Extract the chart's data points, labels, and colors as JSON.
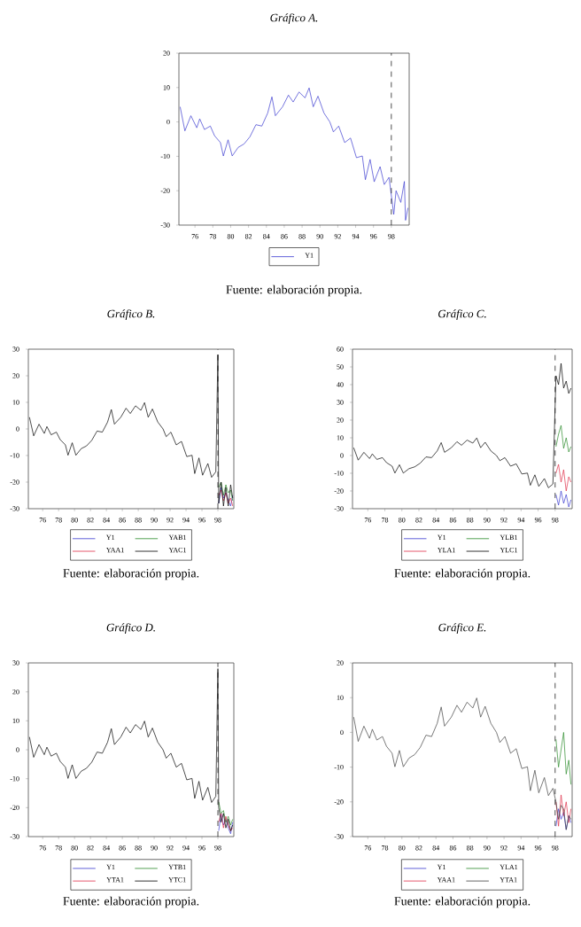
{
  "chart_data": [
    {
      "type": "line",
      "title": "Gráfico A.",
      "annotations": [
        "Fuente: elaboración propia."
      ],
      "xlim": [
        1974.2,
        2000
      ],
      "xticks": [
        {
          "value": 1976,
          "label": "76"
        },
        {
          "value": 1978,
          "label": "78"
        },
        {
          "value": 1980,
          "label": "80"
        },
        {
          "value": 1982,
          "label": "82"
        },
        {
          "value": 1984,
          "label": "84"
        },
        {
          "value": 1986,
          "label": "86"
        },
        {
          "value": 1988,
          "label": "88"
        },
        {
          "value": 1990,
          "label": "90"
        },
        {
          "value": 1992,
          "label": "92"
        },
        {
          "value": 1994,
          "label": "94"
        },
        {
          "value": 1996,
          "label": "96"
        },
        {
          "value": 1998,
          "label": "98"
        }
      ],
      "ylim": [
        -30,
        20
      ],
      "yticks": [
        -30,
        -20,
        -10,
        0,
        10,
        20
      ],
      "legend": "bottom",
      "ref_lines": [
        {
          "axis": "x",
          "value": 1998,
          "line_style": "dashed",
          "color": "#000000"
        }
      ],
      "series": [
        {
          "name": "Y1",
          "color": "#3a3ad0",
          "x": [
            1974.34,
            1974.87,
            1975.54,
            1976.2,
            1976.53,
            1977.06,
            1977.72,
            1978.19,
            1978.85,
            1979.18,
            1979.71,
            1980.17,
            1980.84,
            1981.5,
            1982.16,
            1982.83,
            1983.49,
            1984.15,
            1984.62,
            1985.01,
            1985.81,
            1986.47,
            1987.0,
            1987.66,
            1988.33,
            1988.79,
            1989.25,
            1989.78,
            1990.45,
            1991.11,
            1991.51,
            1992.1,
            1992.77,
            1993.43,
            1994.09,
            1994.75,
            1995.09,
            1995.62,
            1996.08,
            1996.74,
            1997.21,
            1997.74,
            1998.27,
            1998.53,
            1999.06,
            1999.46,
            1999.59,
            1999.86
          ],
          "values": [
            4.4,
            -2.6,
            1.8,
            -1.7,
            0.9,
            -2.2,
            -1.2,
            -4,
            -6,
            -9.9,
            -5.2,
            -9.9,
            -7.4,
            -6.4,
            -4.3,
            -0.8,
            -1.2,
            2.6,
            7.3,
            1.8,
            4.4,
            7.8,
            5.8,
            8.7,
            7,
            9.9,
            4.4,
            7.5,
            2.6,
            0,
            -2.9,
            -1.2,
            -6,
            -4.7,
            -10.4,
            -9.9,
            -16.8,
            -10.9,
            -17.4,
            -13,
            -18.2,
            -16.1,
            -26.9,
            -20,
            -23.4,
            -17.3,
            -28.6,
            -25
          ]
        }
      ]
    },
    {
      "type": "line",
      "title": "Gráfico B.",
      "annotations": [
        "Fuente: elaboración propia."
      ],
      "xlim": [
        1974.2,
        2000
      ],
      "xticks": [
        {
          "value": 1976,
          "label": "76"
        },
        {
          "value": 1978,
          "label": "78"
        },
        {
          "value": 1980,
          "label": "80"
        },
        {
          "value": 1982,
          "label": "82"
        },
        {
          "value": 1984,
          "label": "84"
        },
        {
          "value": 1986,
          "label": "86"
        },
        {
          "value": 1988,
          "label": "88"
        },
        {
          "value": 1990,
          "label": "90"
        },
        {
          "value": 1992,
          "label": "92"
        },
        {
          "value": 1994,
          "label": "94"
        },
        {
          "value": 1996,
          "label": "96"
        },
        {
          "value": 1998,
          "label": "98"
        }
      ],
      "ylim": [
        -30,
        30
      ],
      "yticks": [
        -30,
        -20,
        -10,
        0,
        10,
        20,
        30
      ],
      "legend": "bottom",
      "ref_lines": [
        {
          "axis": "x",
          "value": 1998,
          "line_style": "dashed",
          "color": "#000000"
        }
      ],
      "series": [
        {
          "name": "Y1",
          "color": "#3a3ad0",
          "x": [
            1998.1,
            1998.4,
            1998.7,
            1999.0,
            1999.3,
            1999.6,
            1999.86
          ],
          "values": [
            -28,
            -22,
            -26,
            -24,
            -27,
            -29,
            -25
          ]
        },
        {
          "name": "YAB1",
          "color": "#2a8a2a",
          "x": [
            1998.1,
            1998.4,
            1998.7,
            1999.0,
            1999.3,
            1999.6,
            1999.86
          ],
          "values": [
            -22,
            -20,
            -25,
            -21,
            -24,
            -23,
            -27
          ]
        },
        {
          "name": "YAA1",
          "color": "#e0304a",
          "x": [
            1998.1,
            1998.4,
            1998.7,
            1999.0,
            1999.3,
            1999.6,
            1999.86
          ],
          "values": [
            -25,
            -23,
            -27,
            -24,
            -28,
            -26,
            -29
          ]
        },
        {
          "name": "YAC1",
          "color": "#000000",
          "x": [
            1974.34,
            1974.87,
            1975.54,
            1976.2,
            1976.53,
            1977.06,
            1977.72,
            1978.19,
            1978.85,
            1979.18,
            1979.71,
            1980.17,
            1980.84,
            1981.5,
            1982.16,
            1982.83,
            1983.49,
            1984.15,
            1984.62,
            1985.01,
            1985.81,
            1986.47,
            1987.0,
            1987.66,
            1988.33,
            1988.79,
            1989.25,
            1989.78,
            1990.45,
            1991.11,
            1991.51,
            1992.1,
            1992.77,
            1993.43,
            1994.09,
            1994.75,
            1995.09,
            1995.62,
            1996.08,
            1996.74,
            1997.21,
            1997.74,
            1998.0,
            1998.1,
            1998.4,
            1998.7,
            1999.0,
            1999.3,
            1999.6,
            1999.86
          ],
          "values": [
            4.4,
            -2.6,
            1.8,
            -1.7,
            0.9,
            -2.2,
            -1.2,
            -4,
            -6,
            -9.9,
            -5.2,
            -9.9,
            -7.4,
            -6.4,
            -4.3,
            -0.8,
            -1.2,
            2.6,
            7.3,
            1.8,
            4.4,
            7.8,
            5.8,
            8.7,
            7,
            9.9,
            4.4,
            7.5,
            2.6,
            0,
            -2.9,
            -1.2,
            -6,
            -4.7,
            -10.4,
            -9.9,
            -16.8,
            -10.9,
            -17.4,
            -13,
            -18.2,
            -16.1,
            28,
            -28,
            -20,
            -29,
            -22,
            -29,
            -21,
            -26
          ]
        }
      ]
    },
    {
      "type": "line",
      "title": "Gráfico C.",
      "annotations": [
        "Fuente: elaboración propia."
      ],
      "xlim": [
        1974.2,
        2000
      ],
      "xticks": [
        {
          "value": 1976,
          "label": "76"
        },
        {
          "value": 1978,
          "label": "78"
        },
        {
          "value": 1980,
          "label": "80"
        },
        {
          "value": 1982,
          "label": "82"
        },
        {
          "value": 1984,
          "label": "84"
        },
        {
          "value": 1986,
          "label": "86"
        },
        {
          "value": 1988,
          "label": "88"
        },
        {
          "value": 1990,
          "label": "90"
        },
        {
          "value": 1992,
          "label": "92"
        },
        {
          "value": 1994,
          "label": "94"
        },
        {
          "value": 1996,
          "label": "96"
        },
        {
          "value": 1998,
          "label": "98"
        }
      ],
      "ylim": [
        -30,
        60
      ],
      "yticks": [
        -30,
        -20,
        -10,
        0,
        10,
        20,
        30,
        40,
        50,
        60
      ],
      "legend": "bottom",
      "ref_lines": [
        {
          "axis": "x",
          "value": 1998,
          "line_style": "dashed",
          "color": "#000000"
        }
      ],
      "series": [
        {
          "name": "Y1",
          "color": "#3a3ad0",
          "x": [
            1998.1,
            1998.4,
            1998.7,
            1999.0,
            1999.3,
            1999.6,
            1999.86
          ],
          "values": [
            -22,
            -28,
            -20,
            -27,
            -22,
            -29,
            -25
          ]
        },
        {
          "name": "YLB1",
          "color": "#2a8a2a",
          "x": [
            1998.1,
            1998.4,
            1998.7,
            1999.0,
            1999.3,
            1999.6,
            1999.86
          ],
          "values": [
            5,
            12,
            17,
            4,
            10,
            2,
            5
          ]
        },
        {
          "name": "YLA1",
          "color": "#e0304a",
          "x": [
            1998.1,
            1998.4,
            1998.7,
            1999.0,
            1999.3,
            1999.6,
            1999.86
          ],
          "values": [
            -10,
            -5,
            -15,
            -8,
            -20,
            -12,
            -15
          ]
        },
        {
          "name": "YLC1",
          "color": "#000000",
          "x": [
            1974.34,
            1974.87,
            1975.54,
            1976.2,
            1976.53,
            1977.06,
            1977.72,
            1978.19,
            1978.85,
            1979.18,
            1979.71,
            1980.17,
            1980.84,
            1981.5,
            1982.16,
            1982.83,
            1983.49,
            1984.15,
            1984.62,
            1985.01,
            1985.81,
            1986.47,
            1987.0,
            1987.66,
            1988.33,
            1988.79,
            1989.25,
            1989.78,
            1990.45,
            1991.11,
            1991.51,
            1992.1,
            1992.77,
            1993.43,
            1994.09,
            1994.75,
            1995.09,
            1995.62,
            1996.08,
            1996.74,
            1997.21,
            1997.74,
            1998.1,
            1998.4,
            1998.7,
            1999.0,
            1999.3,
            1999.6,
            1999.86
          ],
          "values": [
            4.4,
            -2.6,
            1.8,
            -1.7,
            0.9,
            -2.2,
            -1.2,
            -4,
            -6,
            -9.9,
            -5.2,
            -9.9,
            -7.4,
            -6.4,
            -4.3,
            -0.8,
            -1.2,
            2.6,
            7.3,
            1.8,
            4.4,
            7.8,
            5.8,
            8.7,
            7,
            9.9,
            4.4,
            7.5,
            2.6,
            0,
            -2.9,
            -1.2,
            -6,
            -4.7,
            -10.4,
            -9.9,
            -16.8,
            -10.9,
            -17.4,
            -13,
            -18.2,
            -16.1,
            45,
            40,
            52,
            38,
            42,
            35,
            38
          ]
        }
      ]
    },
    {
      "type": "line",
      "title": "Gráfico D.",
      "annotations": [
        "Fuente: elaboración propia."
      ],
      "xlim": [
        1974.2,
        2000
      ],
      "xticks": [
        {
          "value": 1976,
          "label": "76"
        },
        {
          "value": 1978,
          "label": "78"
        },
        {
          "value": 1980,
          "label": "80"
        },
        {
          "value": 1982,
          "label": "82"
        },
        {
          "value": 1984,
          "label": "84"
        },
        {
          "value": 1986,
          "label": "86"
        },
        {
          "value": 1988,
          "label": "88"
        },
        {
          "value": 1990,
          "label": "90"
        },
        {
          "value": 1992,
          "label": "92"
        },
        {
          "value": 1994,
          "label": "94"
        },
        {
          "value": 1996,
          "label": "96"
        },
        {
          "value": 1998,
          "label": "98"
        }
      ],
      "ylim": [
        -30,
        30
      ],
      "yticks": [
        -30,
        -20,
        -10,
        0,
        10,
        20,
        30
      ],
      "legend": "bottom",
      "ref_lines": [
        {
          "axis": "x",
          "value": 1998,
          "line_style": "dashed",
          "color": "#000000"
        }
      ],
      "series": [
        {
          "name": "Y1",
          "color": "#3a3ad0",
          "x": [
            1998.1,
            1998.4,
            1998.7,
            1999.0,
            1999.3,
            1999.6,
            1999.86
          ],
          "values": [
            -28,
            -22,
            -26,
            -24,
            -27,
            -29,
            -25
          ]
        },
        {
          "name": "YTB1",
          "color": "#2a8a2a",
          "x": [
            1998.1,
            1998.4,
            1998.7,
            1999.0,
            1999.3,
            1999.6,
            1999.86
          ],
          "values": [
            -18,
            -22,
            -21,
            -25,
            -23,
            -26,
            -24
          ]
        },
        {
          "name": "YTA1",
          "color": "#e0304a",
          "x": [
            1998.1,
            1998.4,
            1998.7,
            1999.0,
            1999.3,
            1999.6,
            1999.86
          ],
          "values": [
            -25,
            -22,
            -27,
            -23,
            -26,
            -28,
            -27
          ]
        },
        {
          "name": "YTC1",
          "color": "#000000",
          "x": [
            1974.34,
            1974.87,
            1975.54,
            1976.2,
            1976.53,
            1977.06,
            1977.72,
            1978.19,
            1978.85,
            1979.18,
            1979.71,
            1980.17,
            1980.84,
            1981.5,
            1982.16,
            1982.83,
            1983.49,
            1984.15,
            1984.62,
            1985.01,
            1985.81,
            1986.47,
            1987.0,
            1987.66,
            1988.33,
            1988.79,
            1989.25,
            1989.78,
            1990.45,
            1991.11,
            1991.51,
            1992.1,
            1992.77,
            1993.43,
            1994.09,
            1994.75,
            1995.09,
            1995.62,
            1996.08,
            1996.74,
            1997.21,
            1997.74,
            1998.0,
            1998.1,
            1998.4,
            1998.7,
            1999.0,
            1999.3,
            1999.6,
            1999.86
          ],
          "values": [
            4.4,
            -2.6,
            1.8,
            -1.7,
            0.9,
            -2.2,
            -1.2,
            -4,
            -6,
            -9.9,
            -5.2,
            -9.9,
            -7.4,
            -6.4,
            -4.3,
            -0.8,
            -1.2,
            2.6,
            7.3,
            1.8,
            4.4,
            7.8,
            5.8,
            8.7,
            7,
            9.9,
            4.4,
            7.5,
            2.6,
            0,
            -2.9,
            -1.2,
            -6,
            -4.7,
            -10.4,
            -9.9,
            -16.8,
            -10.9,
            -17.4,
            -13,
            -18.2,
            -16.1,
            28,
            -20,
            -25,
            -22,
            -27,
            -24,
            -28,
            -26
          ]
        }
      ]
    },
    {
      "type": "line",
      "title": "Gráfico E.",
      "annotations": [
        "Fuente: elaboración propia."
      ],
      "xlim": [
        1974.2,
        2000
      ],
      "xticks": [
        {
          "value": 1976,
          "label": "76"
        },
        {
          "value": 1978,
          "label": "78"
        },
        {
          "value": 1980,
          "label": "80"
        },
        {
          "value": 1982,
          "label": "82"
        },
        {
          "value": 1984,
          "label": "84"
        },
        {
          "value": 1986,
          "label": "86"
        },
        {
          "value": 1988,
          "label": "88"
        },
        {
          "value": 1990,
          "label": "90"
        },
        {
          "value": 1992,
          "label": "92"
        },
        {
          "value": 1994,
          "label": "94"
        },
        {
          "value": 1996,
          "label": "96"
        },
        {
          "value": 1998,
          "label": "98"
        }
      ],
      "ylim": [
        -30,
        20
      ],
      "yticks": [
        -30,
        -20,
        -10,
        0,
        10,
        20
      ],
      "legend": "bottom",
      "ref_lines": [
        {
          "axis": "x",
          "value": 1998,
          "line_style": "dashed",
          "color": "#000000"
        }
      ],
      "series": [
        {
          "name": "Y1",
          "color": "#3a3ad0",
          "x": [
            1998.1,
            1998.4,
            1998.7,
            1999.0,
            1999.3,
            1999.6,
            1999.86
          ],
          "values": [
            -27,
            -22,
            -25,
            -23,
            -28,
            -24,
            -26
          ]
        },
        {
          "name": "YLA1",
          "color": "#2a8a2a",
          "x": [
            1998.1,
            1998.4,
            1998.7,
            1999.0,
            1999.3,
            1999.6,
            1999.86
          ],
          "values": [
            -2,
            -10,
            -5,
            0,
            -12,
            -8,
            -15
          ]
        },
        {
          "name": "YAA1",
          "color": "#e0304a",
          "x": [
            1998.1,
            1998.4,
            1998.7,
            1999.0,
            1999.3,
            1999.6,
            1999.86
          ],
          "values": [
            -20,
            -27,
            -18,
            -24,
            -20,
            -26,
            -22
          ]
        },
        {
          "name": "YTA1",
          "color": "#404040",
          "x": [
            1974.34,
            1974.87,
            1975.54,
            1976.2,
            1976.53,
            1977.06,
            1977.72,
            1978.19,
            1978.85,
            1979.18,
            1979.71,
            1980.17,
            1980.84,
            1981.5,
            1982.16,
            1982.83,
            1983.49,
            1984.15,
            1984.62,
            1985.01,
            1985.81,
            1986.47,
            1987.0,
            1987.66,
            1988.33,
            1988.79,
            1989.25,
            1989.78,
            1990.45,
            1991.11,
            1991.51,
            1992.1,
            1992.77,
            1993.43,
            1994.09,
            1994.75,
            1995.09,
            1995.62,
            1996.08,
            1996.74,
            1997.21,
            1997.74,
            1998.1,
            1998.4,
            1998.7,
            1999.0,
            1999.3,
            1999.6,
            1999.86
          ],
          "values": [
            4.4,
            -2.6,
            1.8,
            -1.7,
            0.9,
            -2.2,
            -1.2,
            -4,
            -6,
            -9.9,
            -5.2,
            -9.9,
            -7.4,
            -6.4,
            -4.3,
            -0.8,
            -1.2,
            2.6,
            7.3,
            1.8,
            4.4,
            7.8,
            5.8,
            8.7,
            7,
            9.9,
            4.4,
            7.5,
            2.6,
            0,
            -2.9,
            -1.2,
            -6,
            -4.7,
            -10.4,
            -9.9,
            -16.8,
            -10.9,
            -17.4,
            -13,
            -18.2,
            -16.1,
            -20,
            -25,
            -21,
            -22,
            -28,
            -24,
            -25
          ]
        }
      ]
    }
  ]
}
